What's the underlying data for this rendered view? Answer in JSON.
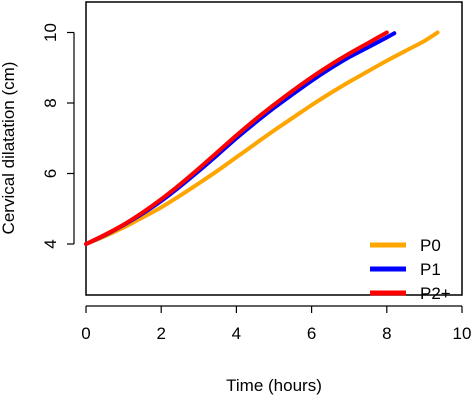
{
  "chart_data": {
    "type": "line",
    "xlabel": "Time (hours)",
    "ylabel": "Cervical dilatation (cm)",
    "xlim": [
      0,
      10
    ],
    "ylim": [
      3,
      11
    ],
    "x_ticks": [
      0,
      2,
      4,
      6,
      8,
      10
    ],
    "y_ticks": [
      4,
      6,
      8,
      10
    ],
    "grid": false,
    "legend_position": "bottom-right",
    "series": [
      {
        "name": "P0",
        "color": "#FFA500",
        "x": [
          0,
          0.5,
          1,
          1.5,
          2,
          2.5,
          3,
          3.5,
          4,
          4.5,
          5,
          5.5,
          6,
          6.5,
          7,
          7.5,
          8,
          8.5,
          9,
          9.35
        ],
        "y": [
          4.0,
          4.22,
          4.47,
          4.75,
          5.04,
          5.37,
          5.72,
          6.08,
          6.46,
          6.84,
          7.22,
          7.58,
          7.94,
          8.28,
          8.6,
          8.9,
          9.2,
          9.48,
          9.76,
          10.0
        ]
      },
      {
        "name": "P1",
        "color": "#0000FF",
        "x": [
          0,
          0.5,
          1,
          1.5,
          2,
          2.5,
          3,
          3.5,
          4,
          4.5,
          5,
          5.5,
          6,
          6.5,
          7,
          7.5,
          8,
          8.2
        ],
        "y": [
          4.0,
          4.25,
          4.54,
          4.86,
          5.22,
          5.63,
          6.07,
          6.53,
          7.0,
          7.44,
          7.86,
          8.25,
          8.63,
          8.98,
          9.3,
          9.58,
          9.86,
          9.98
        ]
      },
      {
        "name": "P2+",
        "color": "#FF0000",
        "x": [
          0,
          0.5,
          1,
          1.5,
          2,
          2.5,
          3,
          3.5,
          4,
          4.5,
          5,
          5.5,
          6,
          6.5,
          7,
          7.5,
          8
        ],
        "y": [
          4.0,
          4.26,
          4.55,
          4.89,
          5.27,
          5.69,
          6.14,
          6.61,
          7.08,
          7.53,
          7.95,
          8.35,
          8.73,
          9.08,
          9.4,
          9.7,
          10.0
        ]
      }
    ]
  }
}
